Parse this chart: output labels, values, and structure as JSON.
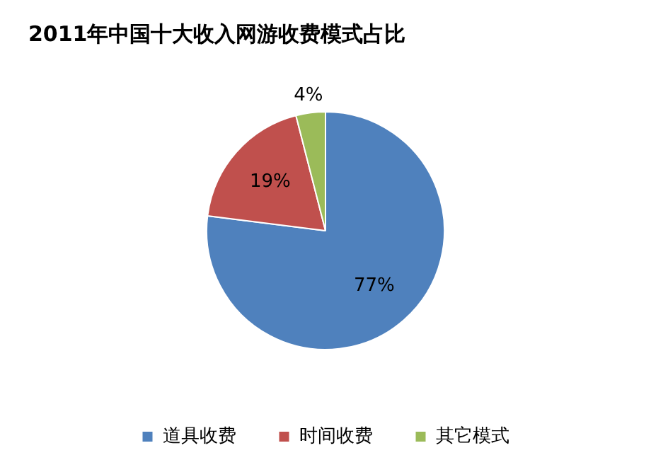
{
  "chart_data": {
    "type": "pie",
    "title": "2011年中国十大收入网游收费模式占比",
    "categories": [
      "道具收费",
      "时间收费",
      "其它模式"
    ],
    "values": [
      77,
      19,
      4
    ],
    "colors": [
      "#4f81bd",
      "#c0504d",
      "#9bbb59"
    ],
    "value_labels": [
      "77%",
      "19%",
      "4%"
    ],
    "legend": "bottom"
  }
}
